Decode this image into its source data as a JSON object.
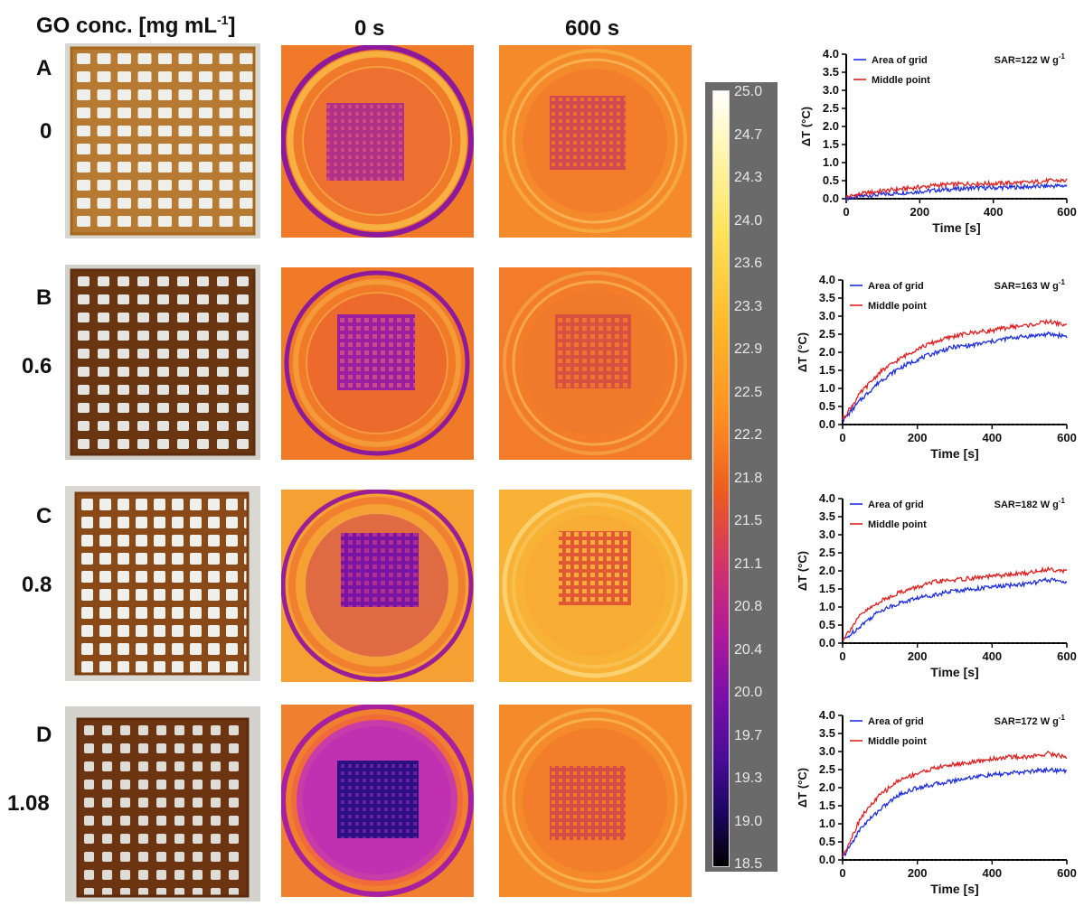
{
  "headers": {
    "go_conc_prefix": "GO conc. [mg  mL",
    "go_conc_sup": "-1",
    "go_conc_suffix": "]",
    "time_0": "0 s",
    "time_600": "600 s"
  },
  "rows": [
    {
      "letter": "A",
      "conc": "0"
    },
    {
      "letter": "B",
      "conc": "0.6"
    },
    {
      "letter": "C",
      "conc": "0.8"
    },
    {
      "letter": "D",
      "conc": "1.08"
    }
  ],
  "colorbar": {
    "ticks": [
      "25.0",
      "24.7",
      "24.3",
      "24.0",
      "23.6",
      "23.3",
      "22.9",
      "22.5",
      "22.2",
      "21.8",
      "21.5",
      "21.1",
      "20.8",
      "20.4",
      "20.0",
      "19.7",
      "19.3",
      "19.0",
      "18.5"
    ]
  },
  "chart_data": [
    {
      "type": "line",
      "xlabel": "Time [s]",
      "ylabel": "ΔT (°C)",
      "xlim": [
        0,
        600
      ],
      "ylim": [
        0,
        4
      ],
      "xticks": [
        "0",
        "200",
        "400",
        "600"
      ],
      "yticks": [
        "0.0",
        "0.5",
        "1.0",
        "1.5",
        "2.0",
        "2.5",
        "3.0",
        "3.5",
        "4.0"
      ],
      "annotation": "SAR=122  W g",
      "annotation_sup": "-1",
      "baseline": 0,
      "series": [
        {
          "name": "Area of grid",
          "color": "#1f2fe0",
          "x": [
            0,
            50,
            100,
            150,
            200,
            250,
            300,
            350,
            400,
            450,
            500,
            550,
            600
          ],
          "values": [
            0.02,
            0.08,
            0.12,
            0.16,
            0.2,
            0.24,
            0.27,
            0.3,
            0.3,
            0.32,
            0.33,
            0.35,
            0.36
          ]
        },
        {
          "name": "Middle point",
          "color": "#e02020",
          "x": [
            0,
            50,
            100,
            150,
            200,
            250,
            300,
            350,
            400,
            450,
            500,
            550,
            600
          ],
          "values": [
            0.05,
            0.15,
            0.22,
            0.27,
            0.32,
            0.38,
            0.4,
            0.42,
            0.42,
            0.44,
            0.45,
            0.5,
            0.5
          ]
        }
      ]
    },
    {
      "type": "line",
      "xlabel": "Time [s]",
      "ylabel": "ΔT (°C)",
      "xlim": [
        0,
        600
      ],
      "ylim": [
        0,
        4
      ],
      "xticks": [
        "0",
        "200",
        "400",
        "600"
      ],
      "yticks": [
        "0.0",
        "0.5",
        "1.0",
        "1.5",
        "2.0",
        "2.5",
        "3.0",
        "3.5",
        "4.0"
      ],
      "annotation": "SAR=163  W g",
      "annotation_sup": "-1",
      "baseline": 0,
      "series": [
        {
          "name": "Area of grid",
          "color": "#1f2fe0",
          "x": [
            0,
            50,
            100,
            150,
            200,
            250,
            300,
            350,
            400,
            450,
            500,
            550,
            600
          ],
          "values": [
            0.1,
            0.7,
            1.2,
            1.55,
            1.8,
            2.0,
            2.15,
            2.2,
            2.3,
            2.4,
            2.45,
            2.5,
            2.45
          ]
        },
        {
          "name": "Middle point",
          "color": "#e02020",
          "x": [
            0,
            50,
            100,
            150,
            200,
            250,
            300,
            350,
            400,
            450,
            500,
            550,
            600
          ],
          "values": [
            0.15,
            0.9,
            1.45,
            1.8,
            2.1,
            2.3,
            2.45,
            2.55,
            2.6,
            2.7,
            2.75,
            2.85,
            2.75
          ]
        }
      ]
    },
    {
      "type": "line",
      "xlabel": "Time [s]",
      "ylabel": "ΔT (°C)",
      "xlim": [
        0,
        600
      ],
      "ylim": [
        0,
        4
      ],
      "xticks": [
        "0",
        "200",
        "400",
        "600"
      ],
      "yticks": [
        "0.0",
        "0.5",
        "1.0",
        "1.5",
        "2.0",
        "2.5",
        "3.0",
        "3.5",
        "4.0"
      ],
      "annotation": "SAR=182  W g",
      "annotation_sup": "-1",
      "baseline": 0,
      "series": [
        {
          "name": "Area of grid",
          "color": "#1f2fe0",
          "x": [
            0,
            50,
            100,
            150,
            200,
            250,
            300,
            350,
            400,
            450,
            500,
            550,
            600
          ],
          "values": [
            0.05,
            0.5,
            0.9,
            1.1,
            1.25,
            1.35,
            1.45,
            1.5,
            1.55,
            1.6,
            1.65,
            1.75,
            1.7
          ]
        },
        {
          "name": "Middle point",
          "color": "#e02020",
          "x": [
            0,
            50,
            100,
            150,
            200,
            250,
            300,
            350,
            400,
            450,
            500,
            550,
            600
          ],
          "values": [
            0.1,
            0.8,
            1.15,
            1.4,
            1.55,
            1.7,
            1.75,
            1.8,
            1.85,
            1.9,
            1.95,
            2.05,
            2.0
          ]
        }
      ]
    },
    {
      "type": "line",
      "xlabel": "Time [s]",
      "ylabel": "ΔT (°C)",
      "xlim": [
        0,
        600
      ],
      "ylim": [
        0,
        4
      ],
      "xticks": [
        "0",
        "200",
        "400",
        "600"
      ],
      "yticks": [
        "0.0",
        "0.5",
        "1.0",
        "1.5",
        "2.0",
        "2.5",
        "3.0",
        "3.5",
        "4.0"
      ],
      "annotation": "SAR=172  W g",
      "annotation_sup": "-1",
      "baseline": 0,
      "series": [
        {
          "name": "Area of grid",
          "color": "#1f2fe0",
          "x": [
            0,
            50,
            100,
            150,
            200,
            250,
            300,
            350,
            400,
            450,
            500,
            550,
            600
          ],
          "values": [
            0.05,
            0.9,
            1.4,
            1.8,
            2.0,
            2.1,
            2.2,
            2.3,
            2.35,
            2.4,
            2.45,
            2.5,
            2.45
          ]
        },
        {
          "name": "Middle point",
          "color": "#e02020",
          "x": [
            0,
            50,
            100,
            150,
            200,
            250,
            300,
            350,
            400,
            450,
            500,
            550,
            600
          ],
          "values": [
            0.1,
            1.2,
            1.8,
            2.2,
            2.4,
            2.55,
            2.65,
            2.7,
            2.8,
            2.85,
            2.85,
            2.95,
            2.85
          ]
        }
      ]
    }
  ],
  "palette": {
    "photo_bg": "#d6d6d0",
    "gel_light": "#b0752c",
    "gel_dark": "#6e3a12",
    "thermo_orange": "#f27a26",
    "thermo_yellow": "#f7a82c",
    "thermo_magenta": "#c8289a",
    "thermo_purple": "#4a1aa0"
  }
}
